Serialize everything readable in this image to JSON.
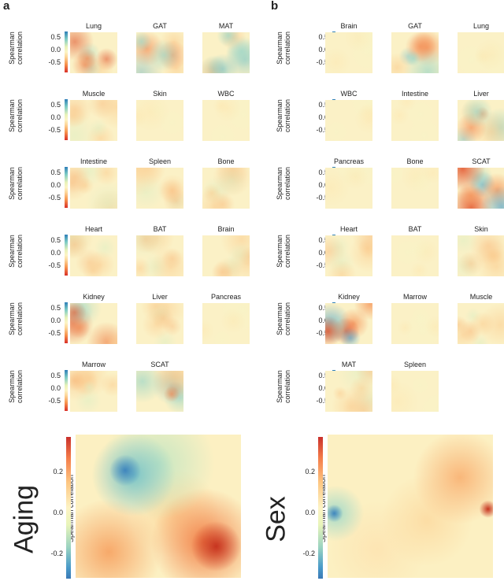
{
  "panels": [
    {
      "label": "a",
      "maps": [
        {
          "title": "Lung",
          "pattern": "lowred"
        },
        {
          "title": "GAT",
          "pattern": "mixed"
        },
        {
          "title": "MAT",
          "pattern": "teal"
        },
        {
          "title": "Muscle",
          "pattern": "soft"
        },
        {
          "title": "Skin",
          "pattern": "faint"
        },
        {
          "title": "WBC",
          "pattern": "faint"
        },
        {
          "title": "Intestine",
          "pattern": "soft"
        },
        {
          "title": "Spleen",
          "pattern": "soft"
        },
        {
          "title": "Bone",
          "pattern": "soft"
        },
        {
          "title": "Heart",
          "pattern": "soft"
        },
        {
          "title": "BAT",
          "pattern": "soft"
        },
        {
          "title": "Brain",
          "pattern": "soft"
        },
        {
          "title": "Kidney",
          "pattern": "lowred"
        },
        {
          "title": "Liver",
          "pattern": "soft"
        },
        {
          "title": "Pancreas",
          "pattern": "faint"
        },
        {
          "title": "Marrow",
          "pattern": "soft"
        },
        {
          "title": "SCAT",
          "pattern": "mixed"
        }
      ]
    },
    {
      "label": "b",
      "maps": [
        {
          "title": "Brain",
          "pattern": "faint"
        },
        {
          "title": "GAT",
          "pattern": "mixed"
        },
        {
          "title": "Lung",
          "pattern": "faint"
        },
        {
          "title": "WBC",
          "pattern": "faint"
        },
        {
          "title": "Intestine",
          "pattern": "faint"
        },
        {
          "title": "Liver",
          "pattern": "mixed"
        },
        {
          "title": "Pancreas",
          "pattern": "faint"
        },
        {
          "title": "Bone",
          "pattern": "faint"
        },
        {
          "title": "SCAT",
          "pattern": "strong"
        },
        {
          "title": "Heart",
          "pattern": "soft"
        },
        {
          "title": "BAT",
          "pattern": "faint"
        },
        {
          "title": "Skin",
          "pattern": "soft"
        },
        {
          "title": "Kidney",
          "pattern": "strong"
        },
        {
          "title": "Marrow",
          "pattern": "faint"
        },
        {
          "title": "Muscle",
          "pattern": "soft"
        },
        {
          "title": "MAT",
          "pattern": "soft"
        },
        {
          "title": "Spleen",
          "pattern": "faint"
        }
      ]
    }
  ],
  "small_axis": {
    "label_line1": "Spearman",
    "label_line2": "correlation",
    "ticks": [
      "0.5",
      "0.0",
      "-0.5"
    ]
  },
  "big_maps": [
    {
      "title": "Aging",
      "ylabel": "Spearman correlation",
      "ticks": [
        "0.2",
        "0.0",
        "-0.2"
      ],
      "pattern": "aging"
    },
    {
      "title": "Sex",
      "ylabel": "Spearman correlation",
      "ticks": [
        "0.2",
        "0.0",
        "-0.2"
      ],
      "pattern": "sex"
    }
  ],
  "colors": {
    "high": "#3a79b6",
    "mid": "#fdf3c4",
    "low": "#d93028"
  }
}
